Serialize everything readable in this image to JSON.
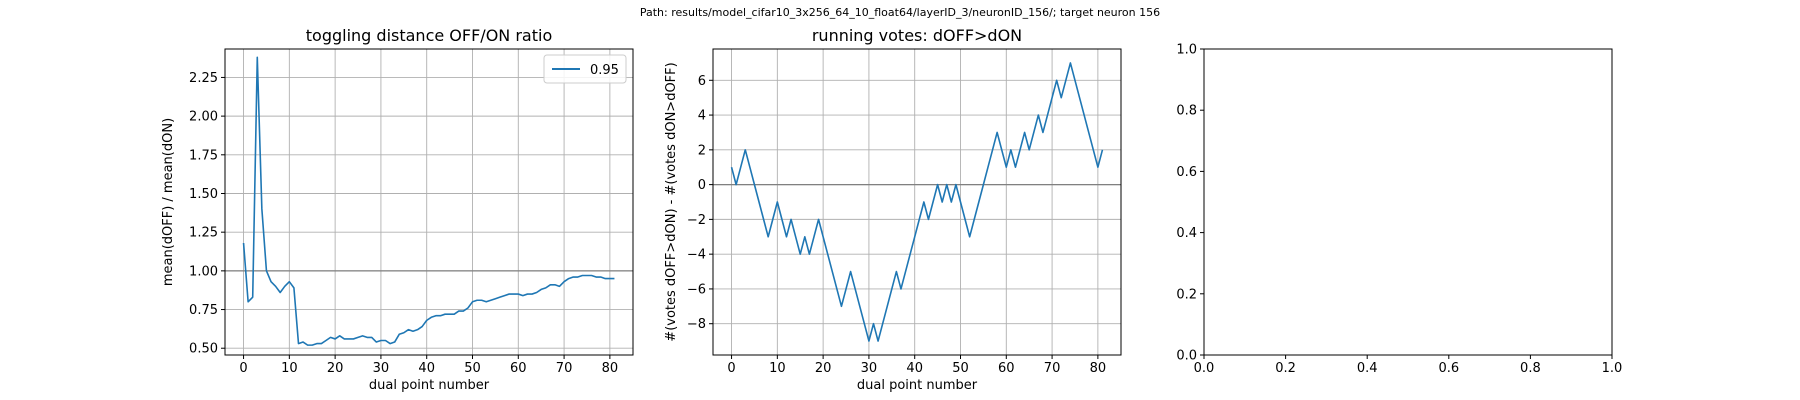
{
  "figure": {
    "suptitle": "Path: results/model_cifar10_3x256_64_10_float64/layerID_3/neuronID_156/; target neuron 156"
  },
  "colors": {
    "line": "#1f77b4",
    "hline": "#808080",
    "grid": "#b0b0b0",
    "axis": "#000000"
  },
  "chart_data": [
    {
      "type": "line",
      "title": "toggling distance OFF/ON ratio",
      "xlabel": "dual point number",
      "ylabel": "mean(dOFF) / mean(dON)",
      "xlim": [
        -4.05,
        85.05
      ],
      "ylim": [
        0.4562,
        2.4338
      ],
      "xticks": [
        0,
        10,
        20,
        30,
        40,
        50,
        60,
        70,
        80
      ],
      "xticklabels": [
        "0",
        "10",
        "20",
        "30",
        "40",
        "50",
        "60",
        "70",
        "80"
      ],
      "yticks": [
        0.5,
        0.75,
        1.0,
        1.25,
        1.5,
        1.75,
        2.0,
        2.25
      ],
      "yticklabels": [
        "0.50",
        "0.75",
        "1.00",
        "1.25",
        "1.50",
        "1.75",
        "2.00",
        "2.25"
      ],
      "grid": true,
      "hline": 1.0,
      "legend": {
        "position": "upper right",
        "entries": [
          "0.95"
        ]
      },
      "series": [
        {
          "name": "0.95",
          "x": [
            0,
            1,
            2,
            3,
            4,
            5,
            6,
            7,
            8,
            9,
            10,
            11,
            12,
            13,
            14,
            15,
            16,
            17,
            18,
            19,
            20,
            21,
            22,
            23,
            24,
            25,
            26,
            27,
            28,
            29,
            30,
            31,
            32,
            33,
            34,
            35,
            36,
            37,
            38,
            39,
            40,
            41,
            42,
            43,
            44,
            45,
            46,
            47,
            48,
            49,
            50,
            51,
            52,
            53,
            54,
            55,
            56,
            57,
            58,
            59,
            60,
            61,
            62,
            63,
            64,
            65,
            66,
            67,
            68,
            69,
            70,
            71,
            72,
            73,
            74,
            75,
            76,
            77,
            78,
            79,
            80,
            81
          ],
          "y": [
            1.18,
            0.8,
            0.83,
            2.38,
            1.4,
            1.0,
            0.93,
            0.9,
            0.86,
            0.9,
            0.93,
            0.89,
            0.53,
            0.54,
            0.52,
            0.52,
            0.53,
            0.53,
            0.55,
            0.57,
            0.56,
            0.58,
            0.56,
            0.56,
            0.56,
            0.57,
            0.58,
            0.57,
            0.57,
            0.54,
            0.55,
            0.55,
            0.53,
            0.54,
            0.59,
            0.6,
            0.62,
            0.61,
            0.62,
            0.64,
            0.68,
            0.7,
            0.71,
            0.71,
            0.72,
            0.72,
            0.72,
            0.74,
            0.74,
            0.76,
            0.8,
            0.81,
            0.81,
            0.8,
            0.81,
            0.82,
            0.83,
            0.84,
            0.85,
            0.85,
            0.85,
            0.84,
            0.85,
            0.85,
            0.86,
            0.88,
            0.89,
            0.91,
            0.91,
            0.9,
            0.93,
            0.95,
            0.96,
            0.96,
            0.97,
            0.97,
            0.97,
            0.96,
            0.96,
            0.95,
            0.95,
            0.95
          ]
        }
      ]
    },
    {
      "type": "line",
      "title": "running votes: dOFF>dON",
      "xlabel": "dual point number",
      "ylabel": "#(votes dOFF>dON) - #(votes dON>dOFF)",
      "xlim": [
        -4.05,
        85.05
      ],
      "ylim": [
        -9.8,
        7.8
      ],
      "xticks": [
        0,
        10,
        20,
        30,
        40,
        50,
        60,
        70,
        80
      ],
      "xticklabels": [
        "0",
        "10",
        "20",
        "30",
        "40",
        "50",
        "60",
        "70",
        "80"
      ],
      "yticks": [
        -8,
        -6,
        -4,
        -2,
        0,
        2,
        4,
        6
      ],
      "yticklabels": [
        "−8",
        "−6",
        "−4",
        "−2",
        "0",
        "2",
        "4",
        "6"
      ],
      "grid": true,
      "hline": 0,
      "series": [
        {
          "x": [
            0,
            1,
            2,
            3,
            4,
            5,
            6,
            7,
            8,
            9,
            10,
            11,
            12,
            13,
            14,
            15,
            16,
            17,
            18,
            19,
            20,
            21,
            22,
            23,
            24,
            25,
            26,
            27,
            28,
            29,
            30,
            31,
            32,
            33,
            34,
            35,
            36,
            37,
            38,
            39,
            40,
            41,
            42,
            43,
            44,
            45,
            46,
            47,
            48,
            49,
            50,
            51,
            52,
            53,
            54,
            55,
            56,
            57,
            58,
            59,
            60,
            61,
            62,
            63,
            64,
            65,
            66,
            67,
            68,
            69,
            70,
            71,
            72,
            73,
            74,
            75,
            76,
            77,
            78,
            79,
            80,
            81
          ],
          "y": [
            1,
            0,
            1,
            2,
            1,
            0,
            -1,
            -2,
            -3,
            -2,
            -1,
            -2,
            -3,
            -2,
            -3,
            -4,
            -3,
            -4,
            -3,
            -2,
            -3,
            -4,
            -5,
            -6,
            -7,
            -6,
            -5,
            -6,
            -7,
            -8,
            -9,
            -8,
            -9,
            -8,
            -7,
            -6,
            -5,
            -6,
            -5,
            -4,
            -3,
            -2,
            -1,
            -2,
            -1,
            0,
            -1,
            0,
            -1,
            0,
            -1,
            -2,
            -3,
            -2,
            -1,
            0,
            1,
            2,
            3,
            2,
            1,
            2,
            1,
            2,
            3,
            2,
            3,
            4,
            3,
            4,
            5,
            6,
            5,
            6,
            7,
            6,
            5,
            4,
            3,
            2,
            1,
            2
          ]
        }
      ]
    },
    {
      "type": "line",
      "title": "",
      "xlim": [
        0,
        1
      ],
      "ylim": [
        0,
        1
      ],
      "xticks": [
        0,
        0.2,
        0.4,
        0.6,
        0.8,
        1.0
      ],
      "xticklabels": [
        "0.0",
        "0.2",
        "0.4",
        "0.6",
        "0.8",
        "1.0"
      ],
      "yticks": [
        0,
        0.2,
        0.4,
        0.6,
        0.8,
        1.0
      ],
      "yticklabels": [
        "0.0",
        "0.2",
        "0.4",
        "0.6",
        "0.8",
        "1.0"
      ],
      "grid": false,
      "series": []
    }
  ]
}
